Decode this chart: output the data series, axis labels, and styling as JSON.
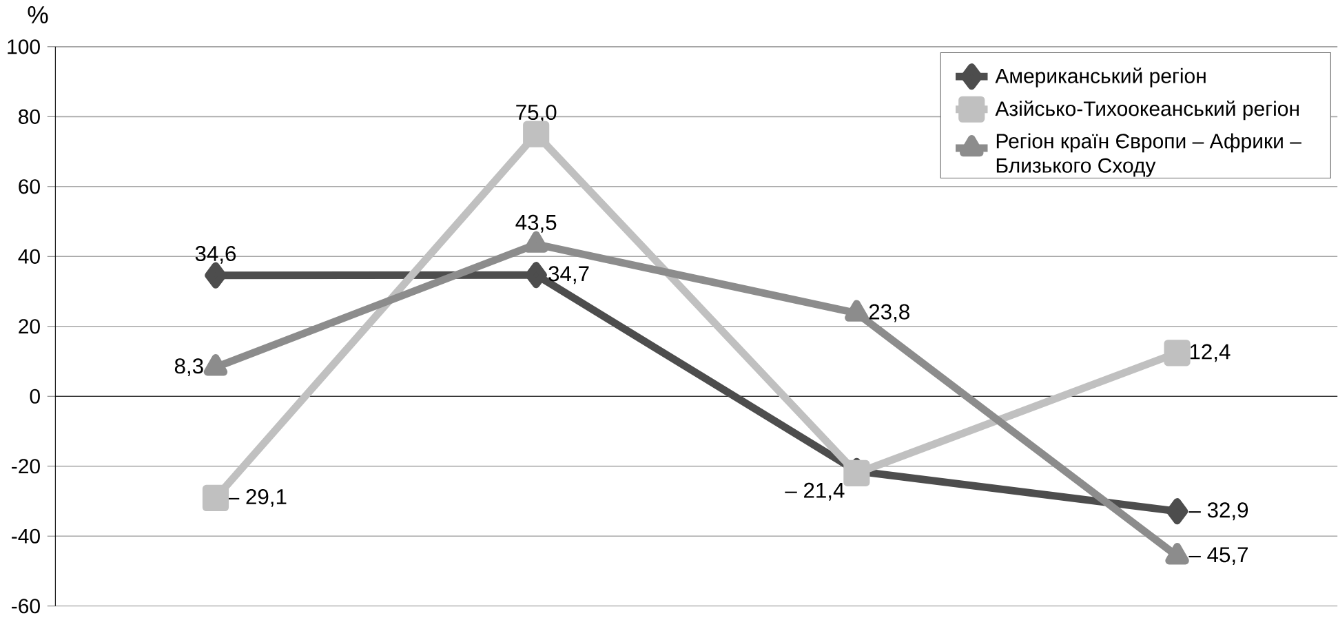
{
  "chart_data": {
    "type": "line",
    "ylabel": "%",
    "categories": [
      null,
      null,
      null,
      null
    ],
    "ylim": [
      -60,
      100
    ],
    "yticks": [
      -60,
      -40,
      -20,
      0,
      20,
      40,
      60,
      80,
      100
    ],
    "grid": "y",
    "legend": "top right",
    "line_style": "solid",
    "series": [
      {
        "name": "Американський регіон",
        "color": "#4d4d4d",
        "marker": "diamond",
        "values": [
          34.6,
          34.7,
          -21.4,
          -32.9
        ],
        "value_labels": [
          "34,6",
          "34,7",
          "– 21,4",
          "– 32,9"
        ]
      },
      {
        "name": "Азійсько-Тихоокеанський регіон",
        "color": "#c0c0c0",
        "marker": "square",
        "values": [
          -29.1,
          75.0,
          -22,
          12.4
        ],
        "value_labels": [
          "– 29,1",
          "75,0",
          null,
          "12,4"
        ]
      },
      {
        "name": "Регіон країн Європи – Африки – Близького Сходу",
        "color": "#8c8c8c",
        "marker": "triangle",
        "values": [
          8.3,
          43.5,
          23.8,
          -45.7
        ],
        "value_labels": [
          "8,3",
          "43,5",
          "23,8",
          "– 45,7"
        ]
      }
    ]
  }
}
